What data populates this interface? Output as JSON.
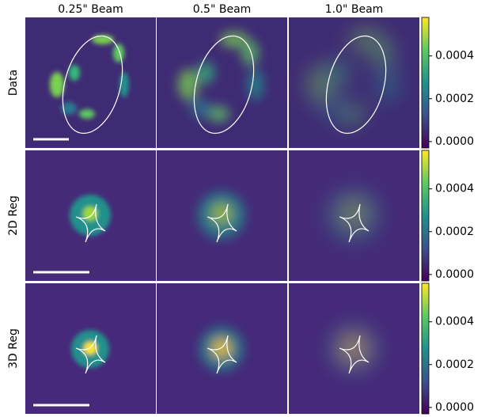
{
  "columns": [
    "0.25\" Beam",
    "0.5\" Beam",
    "1.0\" Beam"
  ],
  "rows": [
    {
      "label": "Data",
      "colorbar": {
        "ylim": [
          -3e-05,
          0.00058
        ],
        "yticks": [
          {
            "value": 0,
            "label": "0.0000"
          },
          {
            "value": 0.0002,
            "label": "0.0002"
          },
          {
            "value": 0.0004,
            "label": "0.0004"
          }
        ]
      }
    },
    {
      "label": "2D Reg",
      "colorbar": {
        "ylim": [
          -3e-05,
          0.00058
        ],
        "yticks": [
          {
            "value": 0,
            "label": "0.0000"
          },
          {
            "value": 0.0002,
            "label": "0.0002"
          },
          {
            "value": 0.0004,
            "label": "0.0004"
          }
        ]
      }
    },
    {
      "label": "3D Reg",
      "colorbar": {
        "ylim": [
          -3e-05,
          0.00058
        ],
        "yticks": [
          {
            "value": 0,
            "label": "0.0000"
          },
          {
            "value": 0.0002,
            "label": "0.0002"
          },
          {
            "value": 0.0004,
            "label": "0.0004"
          }
        ]
      }
    }
  ]
}
